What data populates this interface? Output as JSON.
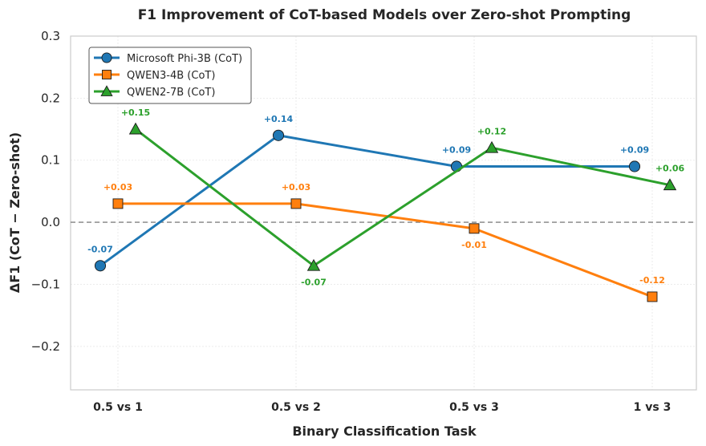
{
  "chart_data": {
    "type": "line",
    "title": "F1 Improvement of CoT-based Models over Zero-shot Prompting",
    "xlabel": "Binary Classification Task",
    "ylabel": "ΔF1 (CoT − Zero-shot)",
    "categories": [
      "0.5 vs 1",
      "0.5 vs 2",
      "0.5 vs 3",
      "1 vs 3"
    ],
    "ylim": [
      -0.27,
      0.3
    ],
    "yticks": [
      -0.2,
      -0.1,
      0.0,
      0.1,
      0.2,
      0.3
    ],
    "ytick_labels": [
      "−0.2",
      "−0.1",
      "0.0",
      "0.1",
      "0.2",
      "0.3"
    ],
    "grid": true,
    "zero_line": true,
    "legend_position": "top-left",
    "series": [
      {
        "name": "Microsoft Phi-3B (CoT)",
        "color": "#1f77b4",
        "marker": "circle",
        "values": [
          -0.07,
          0.14,
          0.09,
          0.09
        ],
        "labels": [
          "-0.07",
          "+0.14",
          "+0.09",
          "+0.09"
        ],
        "label_side": [
          "above",
          "above",
          "above",
          "above"
        ]
      },
      {
        "name": "QWEN3-4B (CoT)",
        "color": "#ff7f0e",
        "marker": "square",
        "values": [
          0.03,
          0.03,
          -0.01,
          -0.12
        ],
        "labels": [
          "+0.03",
          "+0.03",
          "-0.01",
          "-0.12"
        ],
        "label_side": [
          "above",
          "above",
          "below",
          "above"
        ]
      },
      {
        "name": "QWEN2-7B (CoT)",
        "color": "#2ca02c",
        "marker": "triangle",
        "values": [
          0.15,
          -0.07,
          0.12,
          0.06
        ],
        "labels": [
          "+0.15",
          "-0.07",
          "+0.12",
          "+0.06"
        ],
        "label_side": [
          "above",
          "below",
          "above",
          "above"
        ]
      }
    ]
  }
}
